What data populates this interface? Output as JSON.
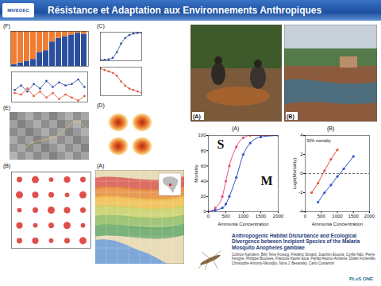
{
  "header": {
    "title": "Résistance et Adaptation aux Environnements Anthropiques",
    "logo": "MIVEGEC"
  },
  "panel_labels": {
    "collage_D": "(D)",
    "collage_E": "(E)",
    "collage_A": "(A)"
  },
  "photos": [
    {
      "label": "(A)"
    },
    {
      "label": "(B)"
    }
  ],
  "paper": {
    "title": "Anthropogenic Habitat Disturbance and Ecological Divergence between Incipient Species of the Malaria Mosquito Anopheles gambiae",
    "authors": "Colince Kamdem, Billy Tene Fossog, Frédéric Simard, Joachim Etouna, Cyrille Ndo, Pierre Kengne, Philippe Boussès, François-Xavier Etoa, Parfait Awono-Ambene, Didier Fontenille, Christophe Antonio-Nkondjio, Nora J. Besansky, Carlo Costantini",
    "journal": "PLoS ONE"
  },
  "chart_data": [
    {
      "type": "bar",
      "title": "(F)",
      "stacked": true,
      "tick_labels": false,
      "categories": [
        null,
        null,
        null,
        null,
        null,
        null,
        null,
        null,
        null,
        null,
        null,
        null
      ],
      "series": [
        {
          "color": "#2b4f9e",
          "values": [
            5,
            10,
            15,
            20,
            40,
            45,
            70,
            80,
            85,
            90,
            95,
            92
          ]
        },
        {
          "color": "#ef7d33",
          "values": [
            95,
            90,
            85,
            80,
            60,
            55,
            30,
            20,
            15,
            10,
            5,
            8
          ]
        }
      ],
      "ylim": [
        0,
        100
      ]
    },
    {
      "type": "line",
      "marker": "circle",
      "tick_labels": false,
      "categories": [
        null,
        null,
        null,
        null,
        null,
        null,
        null,
        null,
        null,
        null,
        null,
        null
      ],
      "series": [
        {
          "color": "#2b4f9e",
          "values": [
            40,
            55,
            35,
            60,
            45,
            70,
            50,
            65,
            55,
            60,
            75,
            50
          ]
        },
        {
          "color": "#e0533a",
          "values": [
            30,
            25,
            45,
            20,
            35,
            15,
            30,
            10,
            25,
            15,
            5,
            20
          ]
        }
      ],
      "ylim": [
        0,
        100
      ]
    },
    {
      "type": "line",
      "title": "(C)",
      "marker": "circle",
      "tick_labels": false,
      "x": [
        0,
        1,
        2,
        3,
        4,
        5,
        6,
        7,
        8,
        9,
        10
      ],
      "series": [
        {
          "color": "#2b4f9e",
          "values": [
            2,
            3,
            5,
            10,
            30,
            60,
            80,
            90,
            95,
            97,
            98
          ]
        }
      ],
      "xlim": [
        0,
        10
      ],
      "ylim": [
        0,
        100
      ]
    },
    {
      "type": "line",
      "marker": "circle",
      "tick_labels": false,
      "x": [
        0,
        1,
        2,
        3,
        4,
        5,
        6,
        7,
        8,
        9,
        10
      ],
      "series": [
        {
          "color": "#e0533a",
          "values": [
            95,
            90,
            85,
            80,
            70,
            50,
            35,
            25,
            20,
            15,
            10
          ]
        }
      ],
      "xlim": [
        0,
        10
      ],
      "ylim": [
        0,
        100
      ]
    },
    {
      "type": "scatter",
      "title": "(B)",
      "tick_labels": false,
      "color": "#d9302c",
      "x": [
        1,
        3,
        5,
        7,
        9,
        1,
        3,
        5,
        7,
        9,
        1,
        3,
        5,
        7,
        9,
        1,
        3,
        5,
        7,
        9,
        1,
        3,
        5,
        7,
        9
      ],
      "values": [
        9,
        9,
        9,
        9,
        9,
        7,
        7,
        7,
        7,
        7,
        5,
        5,
        5,
        5,
        5,
        3,
        3,
        3,
        3,
        3,
        1,
        1,
        1,
        1,
        1
      ],
      "size": [
        3,
        5,
        2,
        4,
        3,
        5,
        4,
        3,
        2,
        5,
        2,
        3,
        5,
        4,
        3,
        4,
        2,
        3,
        5,
        2,
        3,
        4,
        2,
        3,
        5
      ],
      "xlim": [
        0,
        10
      ],
      "ylim": [
        0,
        10
      ]
    },
    {
      "type": "line",
      "title": "(A)",
      "marker": "circle",
      "x": [
        0,
        200,
        400,
        500,
        600,
        800,
        1000,
        1200,
        1500,
        2000
      ],
      "series": [
        {
          "color": "#e8507a",
          "values": [
            0,
            5,
            20,
            40,
            60,
            85,
            97,
            100,
            100,
            100
          ]
        },
        {
          "color": "#3050c8",
          "values": [
            0,
            2,
            5,
            10,
            20,
            45,
            75,
            90,
            98,
            100
          ]
        }
      ],
      "xlabel": "Ammonia Concentration",
      "ylabel": "Mortality",
      "xlim": [
        0,
        2000
      ],
      "xticks": [
        0,
        500,
        1000,
        1500,
        2000
      ],
      "ylim": [
        0,
        100
      ],
      "yticks": [
        0,
        20,
        40,
        60,
        80,
        100
      ],
      "annotations": [
        {
          "text": "S",
          "x": 250,
          "y": 88
        },
        {
          "text": "M",
          "x": 1500,
          "y": 40
        }
      ]
    },
    {
      "type": "line",
      "title": "(B)",
      "marker": "circle",
      "series": [
        {
          "color": "#e0533a",
          "x": [
            200,
            400,
            600,
            800,
            1000
          ],
          "values": [
            -2,
            -1,
            0.3,
            1.5,
            2.5
          ]
        },
        {
          "color": "#3050c8",
          "x": [
            400,
            600,
            800,
            1000,
            1200,
            1500
          ],
          "values": [
            -3,
            -2,
            -1.2,
            -0.3,
            0.5,
            1.8
          ]
        }
      ],
      "xlabel": "Ammonia Concentration",
      "ylabel": "Logit(Mortality)",
      "xlim": [
        0,
        2000
      ],
      "xticks": [
        0,
        500,
        1000,
        1500,
        2000
      ],
      "ylim": [
        -4,
        4
      ],
      "yticks": [
        -4,
        -2,
        0,
        2,
        4
      ],
      "hline": {
        "y": 0,
        "line_style": "dashed"
      },
      "annotations": [
        {
          "text": "50% mortality",
          "x": 50,
          "y": 3.4
        }
      ]
    }
  ]
}
